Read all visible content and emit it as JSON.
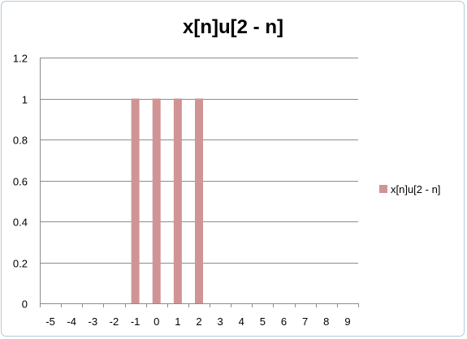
{
  "chart_data": {
    "type": "bar",
    "title": "x[n]u[2 - n]",
    "categories": [
      "-5",
      "-4",
      "-3",
      "-2",
      "-1",
      "0",
      "1",
      "2",
      "3",
      "4",
      "5",
      "6",
      "7",
      "8",
      "9"
    ],
    "series": [
      {
        "name": "x[n]u[2 - n]",
        "values": [
          0,
          0,
          0,
          0,
          1,
          1,
          1,
          1,
          0,
          0,
          0,
          0,
          0,
          0,
          0
        ],
        "color": "#d09494"
      }
    ],
    "ylim": [
      0,
      1.2
    ],
    "yticks": [
      "0",
      "0.2",
      "0.4",
      "0.6",
      "0.8",
      "1",
      "1.2"
    ],
    "grid": true,
    "legend_position": "right"
  }
}
